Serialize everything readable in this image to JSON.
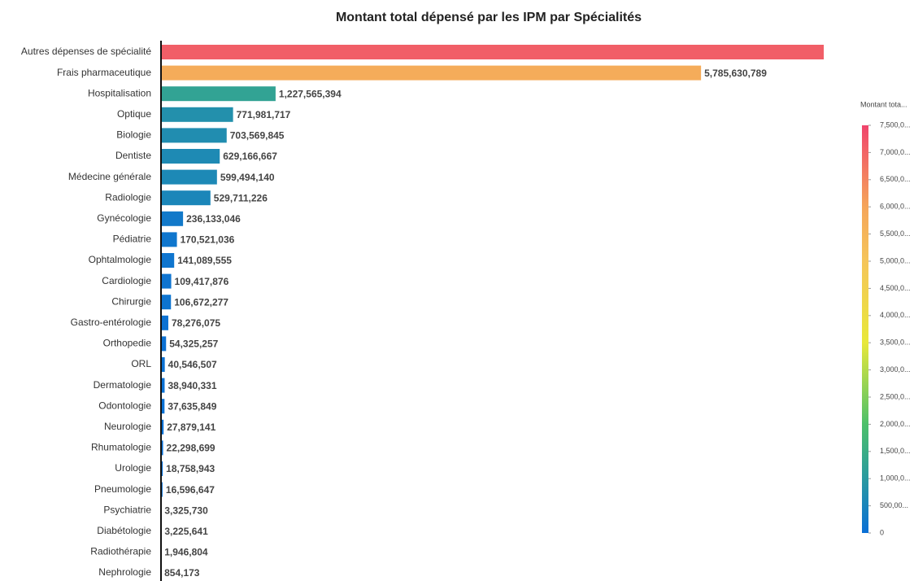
{
  "chart_data": {
    "type": "bar",
    "orientation": "horizontal",
    "title": "Montant total dépensé par les IPM par Spécialités",
    "categories": [
      "Autres dépenses de spécialité",
      "Frais pharmaceutique",
      "Hospitalisation",
      "Optique",
      "Biologie",
      "Dentiste",
      "Médecine générale",
      "Radiologie",
      "Gynécologie",
      "Pédiatrie",
      "Ophtalmologie",
      "Cardiologie",
      "Chirurgie",
      "Gastro-entérologie",
      "Orthopedie",
      "ORL",
      "Dermatologie",
      "Odontologie",
      "Neurologie",
      "Rhumatologie",
      "Urologie",
      "Pneumologie",
      "Psychiatrie",
      "Diabétologie",
      "Radiothérapie",
      "Nephrologie"
    ],
    "values": [
      7100000000,
      5785630789,
      1227565394,
      771981717,
      703569845,
      629166667,
      599494140,
      529711226,
      236133046,
      170521036,
      141089555,
      109417876,
      106672277,
      78276075,
      54325257,
      40546507,
      38940331,
      37635849,
      27879141,
      22298699,
      18758943,
      16596647,
      3325730,
      3225641,
      1946804,
      854173
    ],
    "value_labels": [
      null,
      "5,785,630,789",
      "1,227,565,394",
      "771,981,717",
      "703,569,845",
      "629,166,667",
      "599,494,140",
      "529,711,226",
      "236,133,046",
      "170,521,036",
      "141,089,555",
      "109,417,876",
      "106,672,277",
      "78,276,075",
      "54,325,257",
      "40,546,507",
      "38,940,331",
      "37,635,849",
      "27,879,141",
      "22,298,699",
      "18,758,943",
      "16,596,647",
      "3,325,730",
      "3,225,641",
      "1,946,804",
      "854,173"
    ],
    "colorbar": {
      "title": "Montant tota...",
      "lim": [
        0,
        7500000000
      ],
      "stops": [
        [
          0,
          "#0a6fd6"
        ],
        [
          1000000000,
          "#2a9aa0"
        ],
        [
          2000000000,
          "#4cc06a"
        ],
        [
          3500000000,
          "#e8e83a"
        ],
        [
          5000000000,
          "#f5c55a"
        ],
        [
          6000000000,
          "#f5a55a"
        ],
        [
          7500000000,
          "#f0446c"
        ]
      ],
      "ticks": [
        0,
        {
          "value": 500000000,
          "label": "500,00..."
        },
        {
          "value": 1000000000,
          "label": "1,000,0..."
        },
        {
          "value": 1500000000,
          "label": "1,500,0..."
        },
        {
          "value": 2000000000,
          "label": "2,000,0..."
        },
        {
          "value": 2500000000,
          "label": "2,500,0..."
        },
        {
          "value": 3000000000,
          "label": "3,000,0..."
        },
        {
          "value": 3500000000,
          "label": "3,500,0..."
        },
        {
          "value": 4000000000,
          "label": "4,000,0..."
        },
        {
          "value": 4500000000,
          "label": "4,500,0..."
        },
        {
          "value": 5000000000,
          "label": "5,000,0..."
        },
        {
          "value": 5500000000,
          "label": "5,500,0..."
        },
        {
          "value": 6000000000,
          "label": "6,000,0..."
        },
        {
          "value": 6500000000,
          "label": "6,500,0..."
        },
        {
          "value": 7000000000,
          "label": "7,000,0..."
        },
        {
          "value": 7500000000,
          "label": "7,500,0..."
        }
      ]
    }
  }
}
